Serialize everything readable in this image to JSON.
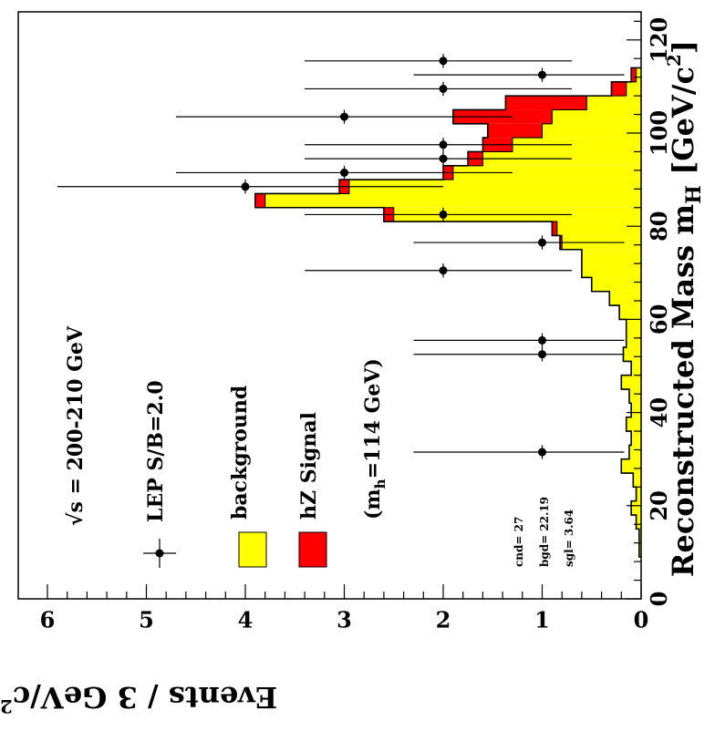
{
  "chart_data": {
    "type": "bar",
    "x_axis": {
      "ticks": [
        "0",
        "20",
        "40",
        "60",
        "80",
        "100",
        "120"
      ],
      "range": [
        0,
        126
      ],
      "title": "Reconstructed Mass m",
      "title_sub": "H",
      "title_unit_open": " [GeV/c",
      "title_unit_sup": "2",
      "title_unit_close": "]"
    },
    "y_axis": {
      "ticks": [
        "0",
        "1",
        "2",
        "3",
        "4",
        "5",
        "6"
      ],
      "range": [
        0,
        6.3
      ],
      "title": "Events / 3 GeV/c",
      "title_sup": "2"
    },
    "bin_width": 3,
    "bin_edges_start": 9,
    "background": [
      0.02,
      0.02,
      0.05,
      0.1,
      0.05,
      0.08,
      0.2,
      0.12,
      0.1,
      0.15,
      0.1,
      0.12,
      0.2,
      0.1,
      0.18,
      0.15,
      0.15,
      0.22,
      0.32,
      0.5,
      0.6,
      0.6,
      0.8,
      0.85,
      2.5,
      3.8,
      2.95,
      1.9,
      1.6,
      1.3,
      1.0,
      0.9,
      0.55,
      0.15,
      0.05
    ],
    "signal": [
      0,
      0,
      0,
      0,
      0,
      0,
      0,
      0,
      0,
      0,
      0,
      0,
      0,
      0,
      0,
      0,
      0,
      0,
      0,
      0,
      0,
      0,
      0.02,
      0.05,
      0.1,
      0.1,
      0.1,
      0.1,
      0.15,
      0.3,
      0.55,
      1.0,
      0.82,
      0.15,
      0.05
    ],
    "data_points": [
      {
        "x": 31.5,
        "y": 1
      },
      {
        "x": 52.5,
        "y": 1
      },
      {
        "x": 55.5,
        "y": 1
      },
      {
        "x": 70.5,
        "y": 2
      },
      {
        "x": 76.5,
        "y": 1
      },
      {
        "x": 82.5,
        "y": 2
      },
      {
        "x": 88.5,
        "y": 4
      },
      {
        "x": 91.5,
        "y": 3
      },
      {
        "x": 94.5,
        "y": 2
      },
      {
        "x": 97.5,
        "y": 2
      },
      {
        "x": 103.5,
        "y": 3
      },
      {
        "x": 109.5,
        "y": 2
      },
      {
        "x": 112.5,
        "y": 1
      },
      {
        "x": 115.5,
        "y": 2
      }
    ],
    "error_bar_upper": {
      "1": 2.3,
      "2": 3.4,
      "3": 4.7,
      "4": 5.9
    },
    "error_bar_lower": {
      "1": 0.17,
      "2": 0.7,
      "3": 1.3,
      "4": 2.0
    },
    "colors": {
      "background": "#ffff00",
      "signal": "#ff0000",
      "data": "#000000",
      "frame": "#000000"
    },
    "energy_label": "√s = 200-210 GeV",
    "legend": [
      {
        "kind": "marker",
        "label": "LEP S/B=2.0"
      },
      {
        "kind": "box",
        "label": "background",
        "color": "#ffff00"
      },
      {
        "kind": "box",
        "label": "hZ Signal",
        "color": "#ff0000"
      }
    ],
    "mass_note": {
      "open": "(m",
      "sub": "h",
      "close": "=114 GeV)"
    },
    "stats": [
      "cnd= 27",
      "bgd= 22.19",
      "sgl=  3.64"
    ]
  }
}
